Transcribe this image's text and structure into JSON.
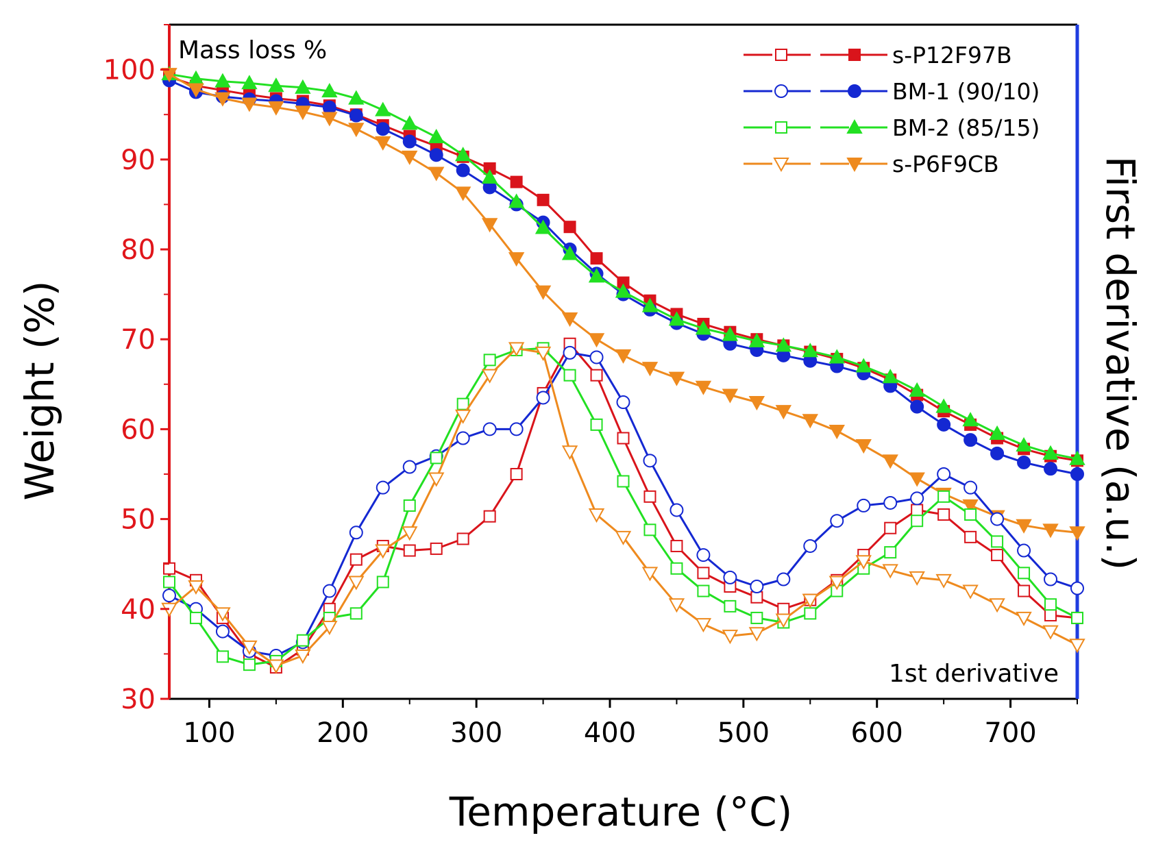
{
  "chart_data": {
    "type": "line",
    "title": "",
    "xlabel": "Temperature (°C)",
    "ylabel_left": "Weight (%)",
    "ylabel_right": "First derivative (a.u.)",
    "xlim": [
      70,
      750
    ],
    "ylim": [
      30,
      105
    ],
    "xticks": [
      100,
      200,
      300,
      400,
      500,
      600,
      700
    ],
    "yticks": [
      30,
      40,
      50,
      60,
      70,
      80,
      90,
      100
    ],
    "grid": false,
    "legend_position": "top-right",
    "annotations": {
      "top_left": "Mass loss %",
      "bottom_right": "1st derivative"
    },
    "colors": {
      "left_axis": "#e0161b",
      "right_axis": "#1f3de0",
      "s-P12F97B": "#d9141b",
      "BM-1 (90/10)": "#1428d2",
      "BM-2 (85/15)": "#22e022",
      "s-P6F9CB": "#ee8a1e"
    },
    "x": [
      70,
      90,
      110,
      130,
      150,
      170,
      190,
      210,
      230,
      250,
      270,
      290,
      310,
      330,
      350,
      370,
      390,
      410,
      430,
      450,
      470,
      490,
      510,
      530,
      550,
      570,
      590,
      610,
      630,
      650,
      670,
      690,
      710,
      730,
      750
    ],
    "series": [
      {
        "name": "s-P12F97B",
        "kind": "weight",
        "marker": "square-filled",
        "values": [
          99.2,
          98.2,
          97.7,
          97.2,
          96.8,
          96.5,
          96.0,
          95.0,
          93.8,
          92.6,
          91.5,
          90.3,
          89.0,
          87.5,
          85.5,
          82.5,
          79.0,
          76.3,
          74.3,
          72.8,
          71.7,
          70.8,
          70.0,
          69.3,
          68.6,
          67.8,
          66.8,
          65.5,
          63.8,
          62.0,
          60.5,
          59.0,
          57.8,
          57.0,
          56.5
        ]
      },
      {
        "name": "BM-1 (90/10)",
        "kind": "weight",
        "marker": "circle-filled",
        "values": [
          98.8,
          97.5,
          97.0,
          96.7,
          96.5,
          96.2,
          95.8,
          94.9,
          93.4,
          92.0,
          90.5,
          88.8,
          86.9,
          85.0,
          83.0,
          80.0,
          77.3,
          75.0,
          73.3,
          71.8,
          70.6,
          69.5,
          68.8,
          68.2,
          67.6,
          67.0,
          66.2,
          64.8,
          62.5,
          60.5,
          58.8,
          57.3,
          56.3,
          55.6,
          55.0
        ]
      },
      {
        "name": "BM-2 (85/15)",
        "kind": "weight",
        "marker": "triangle-up-filled",
        "values": [
          99.5,
          99.0,
          98.7,
          98.5,
          98.2,
          98.0,
          97.6,
          96.8,
          95.5,
          94.0,
          92.5,
          90.5,
          88.0,
          85.3,
          82.4,
          79.5,
          77.0,
          75.3,
          73.7,
          72.2,
          71.2,
          70.5,
          69.8,
          69.3,
          68.7,
          68.0,
          67.0,
          65.8,
          64.3,
          62.5,
          61.0,
          59.5,
          58.2,
          57.3,
          56.7
        ]
      },
      {
        "name": "s-P6F9CB",
        "kind": "weight",
        "marker": "triangle-down-filled",
        "values": [
          99.5,
          97.8,
          96.8,
          96.2,
          95.8,
          95.3,
          94.6,
          93.4,
          91.9,
          90.3,
          88.5,
          86.3,
          82.8,
          79.0,
          75.3,
          72.3,
          70.0,
          68.2,
          66.8,
          65.7,
          64.7,
          63.8,
          63.0,
          62.0,
          61.0,
          59.8,
          58.2,
          56.5,
          54.5,
          52.8,
          51.5,
          50.3,
          49.3,
          48.8,
          48.5
        ]
      },
      {
        "name": "s-P12F97B",
        "kind": "derivative",
        "marker": "square-open",
        "values": [
          44.5,
          43.2,
          39.0,
          35.0,
          33.5,
          35.5,
          40.0,
          45.5,
          47.0,
          46.5,
          46.7,
          47.8,
          50.3,
          55.0,
          64.0,
          69.5,
          66.0,
          59.0,
          52.5,
          47.0,
          44.0,
          42.5,
          41.3,
          40.0,
          41.0,
          43.2,
          46.0,
          49.0,
          51.0,
          50.5,
          48.0,
          46.0,
          42.0,
          39.3,
          39.0
        ]
      },
      {
        "name": "BM-1 (90/10)",
        "kind": "derivative",
        "marker": "circle-open",
        "values": [
          41.5,
          40.0,
          37.5,
          35.3,
          34.8,
          36.3,
          42.0,
          48.5,
          53.5,
          55.8,
          57.0,
          59.0,
          60.0,
          60.0,
          63.5,
          68.5,
          68.0,
          63.0,
          56.5,
          51.0,
          46.0,
          43.5,
          42.5,
          43.3,
          47.0,
          49.8,
          51.5,
          51.8,
          52.3,
          55.0,
          53.5,
          50.0,
          46.5,
          43.3,
          42.3
        ]
      },
      {
        "name": "BM-2 (85/15)",
        "kind": "derivative",
        "marker": "square-open",
        "values": [
          43.0,
          39.0,
          34.7,
          33.8,
          34.2,
          36.5,
          39.0,
          39.5,
          43.0,
          51.5,
          56.8,
          62.8,
          67.7,
          68.8,
          69.0,
          66.0,
          60.5,
          54.2,
          48.8,
          44.5,
          42.0,
          40.3,
          39.0,
          38.5,
          39.5,
          42.0,
          44.5,
          46.3,
          49.8,
          52.5,
          50.5,
          47.5,
          44.0,
          40.5,
          39.0
        ]
      },
      {
        "name": "s-P6F9CB",
        "kind": "derivative",
        "marker": "triangle-down-open",
        "values": [
          40.0,
          42.5,
          39.5,
          35.8,
          33.7,
          34.8,
          38.0,
          43.0,
          46.5,
          48.5,
          54.5,
          61.5,
          66.0,
          69.0,
          68.5,
          57.5,
          50.5,
          48.0,
          44.0,
          40.5,
          38.3,
          37.0,
          37.3,
          38.8,
          41.0,
          43.0,
          45.3,
          44.3,
          43.5,
          43.2,
          42.0,
          40.5,
          39.0,
          37.5,
          36.0
        ]
      }
    ]
  }
}
